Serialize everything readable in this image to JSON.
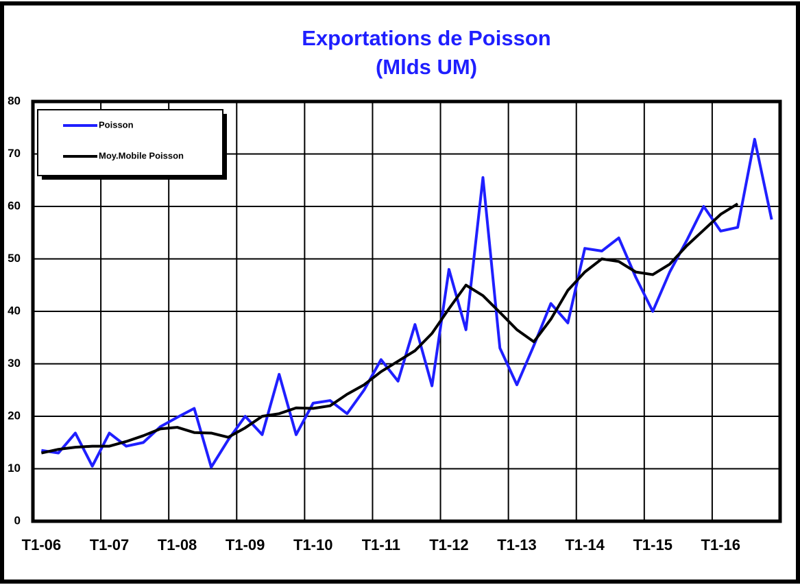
{
  "chart_data": {
    "type": "line",
    "title": "Exportations de Poisson",
    "subtitle": "(Mlds UM)",
    "categories": [
      "T1-06",
      null,
      null,
      null,
      "T1-07",
      null,
      null,
      null,
      "T1-08",
      null,
      null,
      null,
      "T1-09",
      null,
      null,
      null,
      "T1-10",
      null,
      null,
      null,
      "T1-11",
      null,
      null,
      null,
      "T1-12",
      null,
      null,
      null,
      "T1-13",
      null,
      null,
      null,
      "T1-14",
      null,
      null,
      null,
      "T1-15",
      null,
      null,
      null,
      "T1-16",
      null,
      null,
      null
    ],
    "series": [
      {
        "name": "Poisson",
        "color": "#1f1fff",
        "values": [
          13.5,
          13,
          16.8,
          10.5,
          16.8,
          14.3,
          15,
          18,
          19.8,
          21.5,
          10.3,
          15.5,
          20,
          16.5,
          28,
          16.5,
          22.5,
          23,
          20.5,
          25,
          30.8,
          26.7,
          37.5,
          25.8,
          48,
          36.5,
          65.5,
          33,
          26,
          33.5,
          41.5,
          37.8,
          52,
          51.5,
          54,
          46.5,
          40,
          47.5,
          53.5,
          60,
          55.3,
          56,
          72.8,
          57.5
        ]
      },
      {
        "name": "Moy.Mobile Poisson",
        "color": "#000000",
        "values": [
          13,
          13.7,
          14.1,
          14.3,
          14.3,
          15.2,
          16.3,
          17.6,
          17.9,
          16.9,
          16.8,
          16,
          17.8,
          20,
          20.5,
          21.6,
          21.5,
          22,
          24.2,
          26,
          28.5,
          30.5,
          32.5,
          35.8,
          40.5,
          45,
          43,
          39.8,
          36.5,
          34.2,
          38.5,
          44,
          47.5,
          50,
          49.5,
          47.5,
          47,
          49,
          52.5,
          55.5,
          58.5,
          60.5,
          null,
          null
        ]
      }
    ],
    "ylim": [
      0,
      80
    ],
    "yticks": [
      0,
      10,
      20,
      30,
      40,
      50,
      60,
      70,
      80
    ],
    "grid": true,
    "legend": "upper left"
  }
}
